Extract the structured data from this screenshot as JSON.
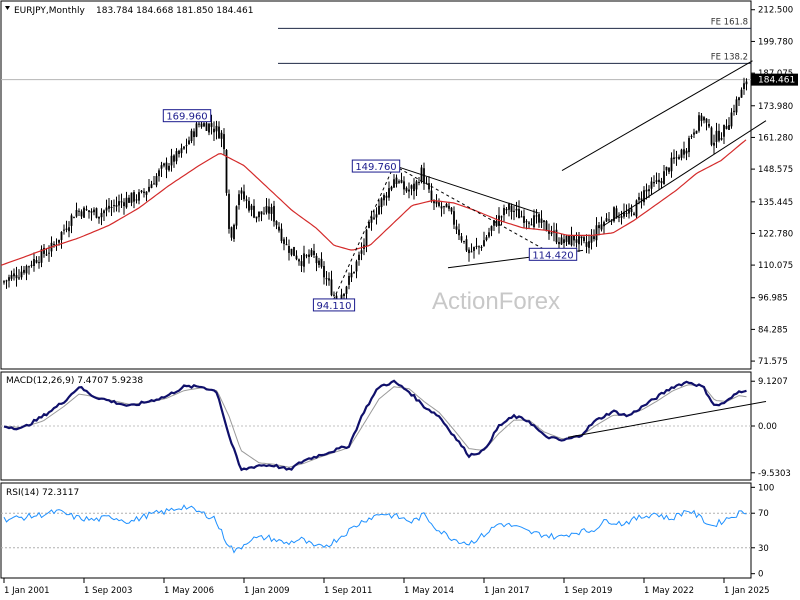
{
  "chart_data": [
    {
      "type": "candlestick",
      "title": "EURJPY,Monthly",
      "ohlc_readout": [
        "183.784",
        "184.668",
        "181.850",
        "184.461"
      ],
      "ylim": [
        68,
        216
      ],
      "yticks": [
        "212.500",
        "199.780",
        "187.075",
        "173.980",
        "161.280",
        "148.575",
        "135.445",
        "122.780",
        "110.075",
        "96.985",
        "84.285",
        "71.575"
      ],
      "ytick_values": [
        212.5,
        199.78,
        187.075,
        173.98,
        161.28,
        148.575,
        135.445,
        122.78,
        110.075,
        96.985,
        84.285,
        71.575
      ],
      "last_price": "184.461",
      "xticks": [
        "1 Jan 2001",
        "1 Sep 2003",
        "1 May 2006",
        "1 Jan 2009",
        "1 Sep 2011",
        "1 May 2014",
        "1 Jan 2017",
        "1 Sep 2019",
        "1 May 2022",
        "1 Jan 2025"
      ],
      "xtick_values": [
        2001.0,
        2003.667,
        2006.333,
        2009.0,
        2011.667,
        2014.333,
        2017.0,
        2019.667,
        2022.333,
        2025.0
      ],
      "xlim": [
        2000.9,
        2025.9
      ],
      "price_key": [
        [
          2000.9,
          103
        ],
        [
          2001.5,
          107
        ],
        [
          2002.1,
          113
        ],
        [
          2002.6,
          117
        ],
        [
          2003.4,
          132
        ],
        [
          2004.2,
          131
        ],
        [
          2005.0,
          136
        ],
        [
          2005.6,
          138
        ],
        [
          2006.3,
          149
        ],
        [
          2006.9,
          155
        ],
        [
          2007.5,
          167
        ],
        [
          2007.9,
          166
        ],
        [
          2008.3,
          162
        ],
        [
          2008.55,
          118
        ],
        [
          2008.8,
          140
        ],
        [
          2009.4,
          130
        ],
        [
          2009.9,
          132
        ],
        [
          2010.4,
          118
        ],
        [
          2010.9,
          112
        ],
        [
          2011.3,
          114
        ],
        [
          2011.8,
          103
        ],
        [
          2012.1,
          96
        ],
        [
          2012.5,
          104
        ],
        [
          2012.9,
          115
        ],
        [
          2013.3,
          130
        ],
        [
          2013.9,
          142
        ],
        [
          2014.0,
          145
        ],
        [
          2014.4,
          140
        ],
        [
          2014.7,
          141
        ],
        [
          2014.9,
          148
        ],
        [
          2015.3,
          134
        ],
        [
          2015.8,
          132
        ],
        [
          2016.1,
          125
        ],
        [
          2016.5,
          115
        ],
        [
          2016.9,
          118
        ],
        [
          2017.3,
          126
        ],
        [
          2017.8,
          133
        ],
        [
          2018.2,
          130
        ],
        [
          2018.7,
          128
        ],
        [
          2019.2,
          124
        ],
        [
          2019.6,
          119
        ],
        [
          2020.0,
          121
        ],
        [
          2020.4,
          117
        ],
        [
          2020.8,
          125
        ],
        [
          2021.3,
          131
        ],
        [
          2021.9,
          130
        ],
        [
          2022.3,
          139
        ],
        [
          2022.8,
          143
        ],
        [
          2023.2,
          150
        ],
        [
          2023.7,
          157
        ],
        [
          2024.0,
          165
        ],
        [
          2024.3,
          170
        ],
        [
          2024.6,
          160
        ],
        [
          2025.0,
          164
        ],
        [
          2025.4,
          175
        ],
        [
          2025.8,
          184.5
        ]
      ],
      "ma_key": [
        [
          2000.9,
          110
        ],
        [
          2001.6,
          113
        ],
        [
          2002.5,
          117
        ],
        [
          2003.5,
          121
        ],
        [
          2004.5,
          126
        ],
        [
          2005.5,
          133
        ],
        [
          2006.5,
          142
        ],
        [
          2007.5,
          150
        ],
        [
          2008.2,
          155
        ],
        [
          2009.0,
          150
        ],
        [
          2009.8,
          141
        ],
        [
          2010.6,
          132
        ],
        [
          2011.4,
          125
        ],
        [
          2012.0,
          118
        ],
        [
          2012.6,
          116
        ],
        [
          2013.2,
          118
        ],
        [
          2013.9,
          126
        ],
        [
          2014.6,
          134
        ],
        [
          2015.3,
          136
        ],
        [
          2016.0,
          135
        ],
        [
          2016.7,
          132
        ],
        [
          2017.5,
          128
        ],
        [
          2018.3,
          125
        ],
        [
          2019.1,
          124
        ],
        [
          2019.8,
          122
        ],
        [
          2020.6,
          122
        ],
        [
          2021.3,
          123
        ],
        [
          2022.0,
          128
        ],
        [
          2022.7,
          134
        ],
        [
          2023.4,
          140
        ],
        [
          2024.1,
          147
        ],
        [
          2024.9,
          152
        ],
        [
          2025.8,
          161
        ]
      ],
      "lines": [
        {
          "name": "FE 161.8",
          "value": 205
        },
        {
          "name": "FE 138.2",
          "value": 191
        }
      ],
      "callouts": [
        {
          "label": "169.960",
          "x": 2007.1,
          "y": 170
        },
        {
          "label": "149.760",
          "x": 2013.4,
          "y": 149.8
        },
        {
          "label": "94.110",
          "x": 2012.0,
          "y": 94.1
        },
        {
          "label": "114.420",
          "x": 2019.3,
          "y": 114.4
        }
      ],
      "watermark": "ActionForex"
    },
    {
      "type": "line",
      "title": "MACD(12,26,9) 7.4707 5.9238",
      "ylim": [
        -11,
        11
      ],
      "yticks": [
        "9.1207",
        "0.00",
        "-9.5303"
      ],
      "ytick_values": [
        9.12,
        0,
        -9.53
      ],
      "macd_key": [
        [
          2000.9,
          0
        ],
        [
          2001.6,
          -0.5
        ],
        [
          2002.3,
          2
        ],
        [
          2003.0,
          5
        ],
        [
          2003.5,
          8
        ],
        [
          2004.0,
          6
        ],
        [
          2004.6,
          5
        ],
        [
          2005.2,
          4
        ],
        [
          2005.8,
          5
        ],
        [
          2006.4,
          6
        ],
        [
          2007.0,
          8
        ],
        [
          2007.6,
          8
        ],
        [
          2008.1,
          7
        ],
        [
          2008.5,
          -2
        ],
        [
          2008.9,
          -9
        ],
        [
          2009.5,
          -8
        ],
        [
          2010.0,
          -8
        ],
        [
          2010.5,
          -9
        ],
        [
          2011.0,
          -7
        ],
        [
          2011.5,
          -6
        ],
        [
          2012.0,
          -5
        ],
        [
          2012.5,
          -4
        ],
        [
          2013.0,
          3
        ],
        [
          2013.5,
          8
        ],
        [
          2014.0,
          9
        ],
        [
          2014.5,
          7
        ],
        [
          2015.0,
          4
        ],
        [
          2015.5,
          2
        ],
        [
          2016.0,
          -2
        ],
        [
          2016.5,
          -6
        ],
        [
          2017.0,
          -5
        ],
        [
          2017.5,
          0
        ],
        [
          2018.0,
          2
        ],
        [
          2018.5,
          1
        ],
        [
          2019.0,
          -2
        ],
        [
          2019.6,
          -3
        ],
        [
          2020.2,
          -2
        ],
        [
          2020.7,
          1
        ],
        [
          2021.3,
          3
        ],
        [
          2021.8,
          2
        ],
        [
          2022.3,
          4
        ],
        [
          2022.8,
          6
        ],
        [
          2023.3,
          8
        ],
        [
          2023.8,
          9
        ],
        [
          2024.3,
          8
        ],
        [
          2024.7,
          4
        ],
        [
          2025.1,
          5
        ],
        [
          2025.5,
          7
        ],
        [
          2025.8,
          7.5
        ]
      ],
      "signal_key": [
        [
          2000.9,
          0
        ],
        [
          2001.6,
          -0.3
        ],
        [
          2002.3,
          1
        ],
        [
          2003.0,
          4
        ],
        [
          2003.5,
          6.5
        ],
        [
          2004.0,
          6
        ],
        [
          2004.6,
          5.2
        ],
        [
          2005.2,
          4.4
        ],
        [
          2005.8,
          4.8
        ],
        [
          2006.4,
          5.6
        ],
        [
          2007.0,
          7.2
        ],
        [
          2007.6,
          7.8
        ],
        [
          2008.1,
          7.2
        ],
        [
          2008.5,
          2
        ],
        [
          2008.9,
          -5
        ],
        [
          2009.5,
          -7.5
        ],
        [
          2010.0,
          -7.8
        ],
        [
          2010.5,
          -8.4
        ],
        [
          2011.0,
          -7.6
        ],
        [
          2011.5,
          -6.4
        ],
        [
          2012.0,
          -5.4
        ],
        [
          2012.5,
          -4.4
        ],
        [
          2013.0,
          0.5
        ],
        [
          2013.5,
          5.5
        ],
        [
          2014.0,
          8
        ],
        [
          2014.5,
          7.6
        ],
        [
          2015.0,
          5
        ],
        [
          2015.5,
          2.8
        ],
        [
          2016.0,
          -0.8
        ],
        [
          2016.5,
          -4.6
        ],
        [
          2017.0,
          -5
        ],
        [
          2017.5,
          -1.5
        ],
        [
          2018.0,
          1.2
        ],
        [
          2018.5,
          1.2
        ],
        [
          2019.0,
          -1.2
        ],
        [
          2019.6,
          -2.6
        ],
        [
          2020.2,
          -2.2
        ],
        [
          2020.7,
          0
        ],
        [
          2021.3,
          2.2
        ],
        [
          2021.8,
          2.2
        ],
        [
          2022.3,
          3.4
        ],
        [
          2022.8,
          5.2
        ],
        [
          2023.3,
          7.2
        ],
        [
          2023.8,
          8.4
        ],
        [
          2024.3,
          8.2
        ],
        [
          2024.7,
          5.2
        ],
        [
          2025.1,
          5
        ],
        [
          2025.5,
          6.2
        ],
        [
          2025.8,
          5.9
        ]
      ],
      "trendline": [
        [
          2019.8,
          -2.3
        ],
        [
          2026.4,
          5
        ]
      ]
    },
    {
      "type": "line",
      "title": "RSI(14) 72.3117",
      "ylim": [
        -5,
        105
      ],
      "yticks": [
        "100",
        "70",
        "30",
        "0"
      ],
      "ytick_values": [
        100,
        70,
        30,
        0
      ],
      "rsi_key": [
        [
          2001.0,
          63
        ],
        [
          2001.6,
          65
        ],
        [
          2002.2,
          68
        ],
        [
          2002.8,
          72
        ],
        [
          2003.4,
          65
        ],
        [
          2004.0,
          62
        ],
        [
          2004.6,
          66
        ],
        [
          2005.2,
          60
        ],
        [
          2005.8,
          68
        ],
        [
          2006.4,
          72
        ],
        [
          2007.0,
          78
        ],
        [
          2007.6,
          70
        ],
        [
          2008.0,
          65
        ],
        [
          2008.4,
          38
        ],
        [
          2008.7,
          25
        ],
        [
          2009.2,
          40
        ],
        [
          2009.8,
          42
        ],
        [
          2010.4,
          35
        ],
        [
          2010.9,
          40
        ],
        [
          2011.4,
          30
        ],
        [
          2011.9,
          35
        ],
        [
          2012.5,
          50
        ],
        [
          2013.0,
          62
        ],
        [
          2013.6,
          70
        ],
        [
          2014.1,
          66
        ],
        [
          2014.6,
          60
        ],
        [
          2015.0,
          68
        ],
        [
          2015.5,
          50
        ],
        [
          2016.0,
          40
        ],
        [
          2016.5,
          35
        ],
        [
          2017.0,
          45
        ],
        [
          2017.5,
          58
        ],
        [
          2018.0,
          55
        ],
        [
          2018.5,
          48
        ],
        [
          2019.0,
          45
        ],
        [
          2019.5,
          42
        ],
        [
          2020.0,
          48
        ],
        [
          2020.6,
          50
        ],
        [
          2021.1,
          62
        ],
        [
          2021.6,
          58
        ],
        [
          2022.2,
          65
        ],
        [
          2022.7,
          70
        ],
        [
          2023.2,
          63
        ],
        [
          2023.8,
          74
        ],
        [
          2024.2,
          65
        ],
        [
          2024.6,
          55
        ],
        [
          2025.0,
          62
        ],
        [
          2025.5,
          70
        ],
        [
          2025.8,
          72
        ]
      ]
    }
  ]
}
